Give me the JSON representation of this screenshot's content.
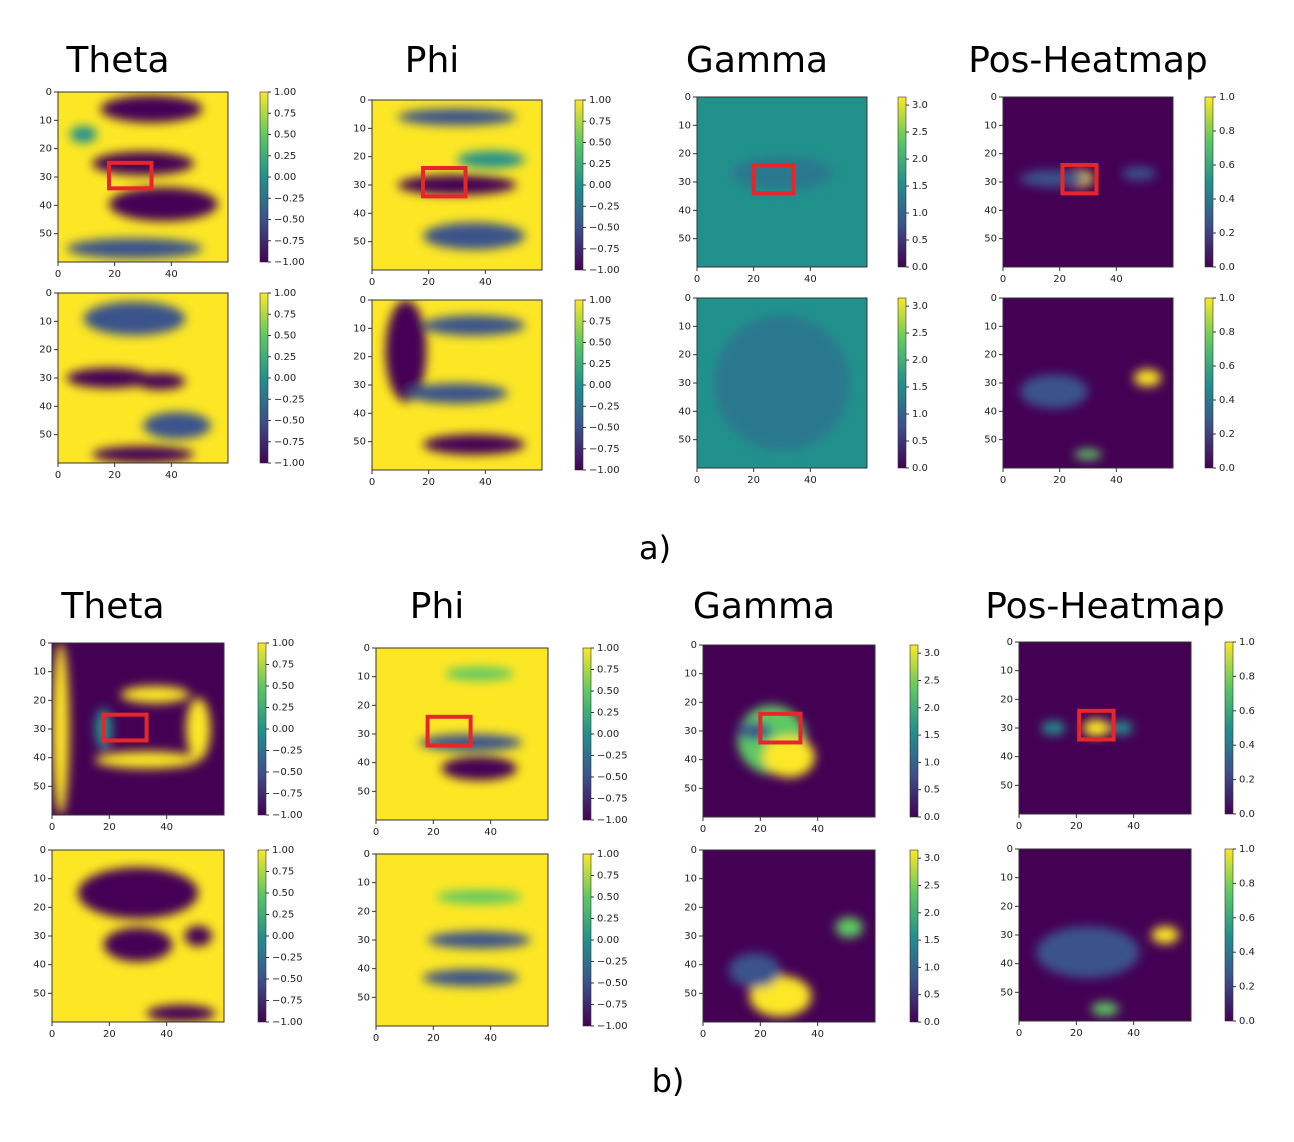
{
  "sections": [
    {
      "label": "a)",
      "titles": [
        "Theta",
        "Phi",
        "Gamma",
        "Pos-Heatmap"
      ]
    },
    {
      "label": "b)",
      "titles": [
        "Theta",
        "Phi",
        "Gamma",
        "Pos-Heatmap"
      ]
    }
  ],
  "axes": {
    "xlim": [
      0,
      60
    ],
    "xticks": [
      0,
      20,
      40
    ],
    "ylim": [
      0,
      60
    ],
    "yticks": [
      0,
      10,
      20,
      30,
      40,
      50
    ]
  },
  "colorbars": [
    {
      "lim": [
        -1,
        1
      ],
      "ticks": [
        {
          "value": -1,
          "label": "−1.00"
        },
        {
          "value": -0.75,
          "label": "−0.75"
        },
        {
          "value": -0.5,
          "label": "−0.50"
        },
        {
          "value": -0.25,
          "label": "−0.25"
        },
        {
          "value": 0,
          "label": "0.00"
        },
        {
          "value": 0.25,
          "label": "0.25"
        },
        {
          "value": 0.5,
          "label": "0.50"
        },
        {
          "value": 0.75,
          "label": "0.75"
        },
        {
          "value": 1,
          "label": "1.00"
        }
      ]
    },
    {
      "lim": [
        -1,
        1
      ],
      "ticks": [
        {
          "value": -1,
          "label": "−1.00"
        },
        {
          "value": -0.75,
          "label": "−0.75"
        },
        {
          "value": -0.5,
          "label": "−0.50"
        },
        {
          "value": -0.25,
          "label": "−0.25"
        },
        {
          "value": 0,
          "label": "0.00"
        },
        {
          "value": 0.25,
          "label": "0.25"
        },
        {
          "value": 0.5,
          "label": "0.50"
        },
        {
          "value": 0.75,
          "label": "0.75"
        },
        {
          "value": 1,
          "label": "1.00"
        }
      ]
    },
    {
      "lim": [
        0,
        3.15
      ],
      "ticks": [
        {
          "value": 0,
          "label": "0.0"
        },
        {
          "value": 0.5,
          "label": "0.5"
        },
        {
          "value": 1,
          "label": "1.0"
        },
        {
          "value": 1.5,
          "label": "1.5"
        },
        {
          "value": 2,
          "label": "2.0"
        },
        {
          "value": 2.5,
          "label": "2.5"
        },
        {
          "value": 3,
          "label": "3.0"
        }
      ]
    },
    {
      "lim": [
        0,
        1
      ],
      "ticks": [
        {
          "value": 0,
          "label": "0.0"
        },
        {
          "value": 0.2,
          "label": "0.2"
        },
        {
          "value": 0.4,
          "label": "0.4"
        },
        {
          "value": 0.6,
          "label": "0.6"
        },
        {
          "value": 0.8,
          "label": "0.8"
        },
        {
          "value": 1,
          "label": "1.0"
        }
      ]
    }
  ]
}
